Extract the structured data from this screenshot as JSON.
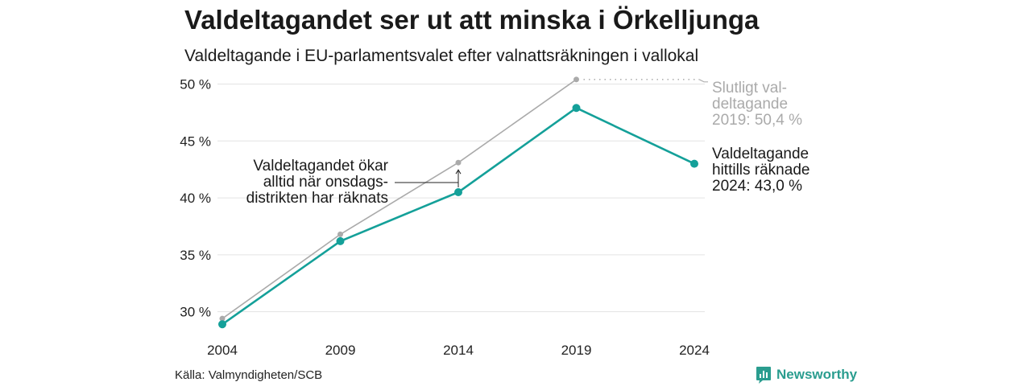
{
  "title": "Valdeltagandet ser ut att minska i Örkelljunga",
  "subtitle": "Valdeltagande i EU-parlamentsvalet efter valnattsräkningen i vallokal",
  "source": "Källa: Valmyndigheten/SCB",
  "brand": {
    "name": "Newsworthy",
    "icon": "bar-chart-logo-icon",
    "color": "#2a9d8f"
  },
  "annotations": {
    "final": [
      "Slutligt val-",
      "deltagande",
      "2019: 50,4 %"
    ],
    "counted": [
      "Valdeltagande",
      "hittills räknade",
      "2024: 43,0 %"
    ],
    "note": [
      "Valdeltagandet ökar",
      "alltid när onsdags-",
      "distrikten har räknats"
    ]
  },
  "chart_data": {
    "type": "line",
    "categories": [
      "2004",
      "2009",
      "2014",
      "2019",
      "2024"
    ],
    "ylim": [
      28,
      50.6
    ],
    "yticks": [
      30,
      35,
      40,
      45,
      50
    ],
    "ytick_labels": [
      "30 %",
      "35 %",
      "40 %",
      "45 %",
      "50 %"
    ],
    "grid": true,
    "series": [
      {
        "key": "final",
        "values": [
          29.4,
          36.8,
          43.1,
          50.4,
          null
        ],
        "color": "#aaaaaa"
      },
      {
        "key": "counted",
        "values": [
          28.9,
          36.2,
          40.5,
          47.9,
          43.0
        ],
        "color": "#14a099"
      }
    ]
  }
}
